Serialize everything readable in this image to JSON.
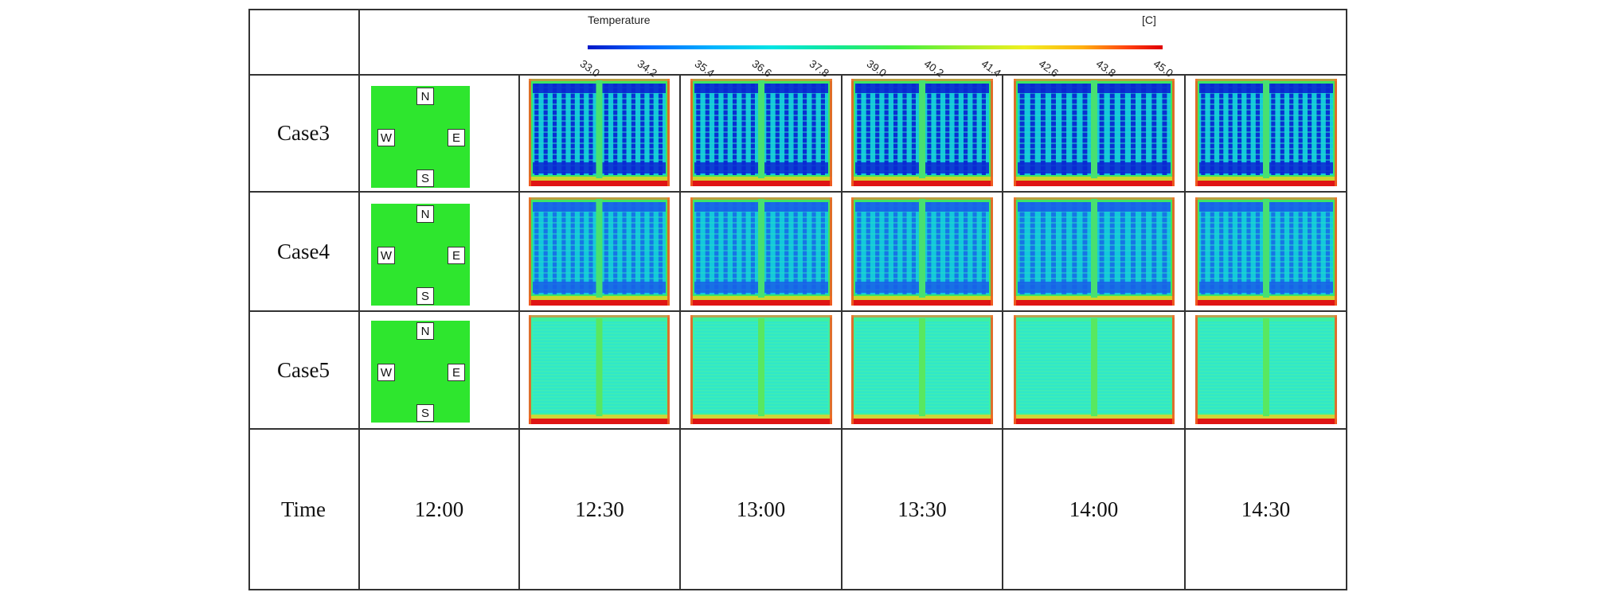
{
  "legend": {
    "title": "Temperature",
    "unit": "[C]",
    "ticks": [
      "33.0",
      "34.2",
      "35.4",
      "36.6",
      "37.8",
      "39.0",
      "40.2",
      "41.4",
      "42.6",
      "43.8",
      "45.0"
    ]
  },
  "compass": {
    "north": "N",
    "west": "W",
    "east": "E",
    "south": "S"
  },
  "rows": [
    {
      "label": "Case3",
      "pattern": "dense-cold-striped"
    },
    {
      "label": "Case4",
      "pattern": "striped"
    },
    {
      "label": "Case5",
      "pattern": "uniform-warm"
    }
  ],
  "time_header": "Time",
  "times": [
    "12:00",
    "12:30",
    "13:00",
    "13:30",
    "14:00",
    "14:30"
  ],
  "colors": {
    "plate_green": "#2ee62e",
    "cold_blue": "#0a28d2",
    "mid_cyan": "#14c8dc",
    "edge_green": "#3ce664",
    "hot_red": "#e01414"
  }
}
